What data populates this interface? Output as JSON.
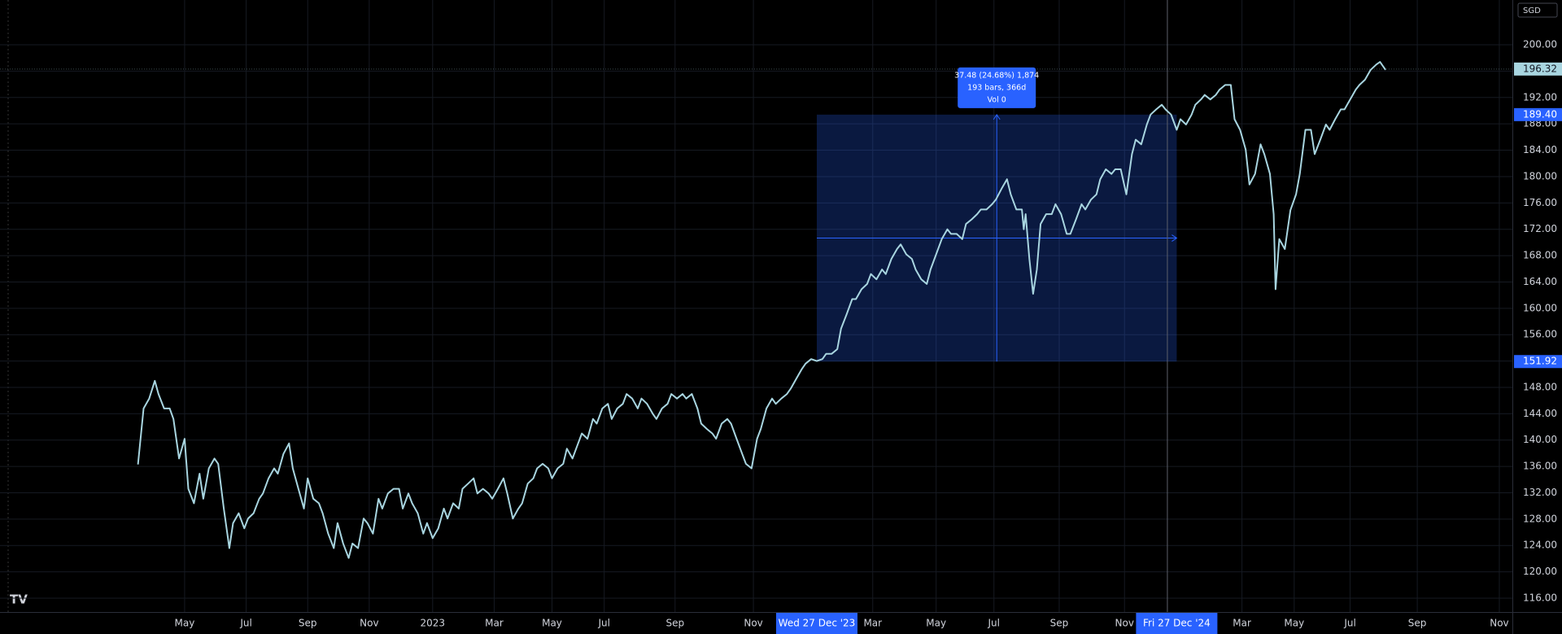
{
  "chart_data": {
    "type": "line",
    "currency": "SGD",
    "x": [
      0,
      3,
      6,
      9,
      11,
      14,
      17,
      19,
      22,
      25,
      27,
      30,
      33,
      35,
      38,
      41,
      43,
      46,
      49,
      51,
      54,
      57,
      59,
      62,
      65,
      67,
      70,
      73,
      75,
      78,
      81,
      83,
      86,
      89,
      91,
      94,
      97,
      99,
      102,
      105,
      107,
      110,
      113,
      115,
      118,
      121,
      123,
      126,
      129,
      131,
      134,
      137,
      140,
      142,
      145,
      147,
      150,
      153,
      155,
      158,
      161,
      164,
      166,
      169,
      172,
      174,
      177,
      180,
      182,
      185,
      188,
      190,
      193,
      196,
      198,
      201,
      204,
      206,
      209,
      212,
      214,
      217,
      220,
      222,
      225,
      228,
      230,
      233,
      236,
      238,
      241,
      244,
      246,
      249,
      252,
      254,
      257,
      260,
      262,
      265,
      268,
      270,
      273,
      276,
      278,
      281,
      284,
      286,
      289,
      292,
      294,
      297,
      300,
      302,
      305,
      308,
      310,
      313,
      316,
      318,
      321,
      324,
      326,
      329,
      332,
      334,
      337,
      340,
      342,
      345,
      348,
      350,
      353,
      356,
      358,
      361,
      364,
      367,
      369,
      372,
      375,
      377,
      380,
      383,
      385,
      388,
      391,
      393,
      396,
      399,
      401,
      404,
      407,
      409,
      412,
      415,
      417,
      420,
      423,
      425,
      428,
      431,
      434,
      436,
      439,
      442,
      444,
      447,
      450,
      452,
      455,
      458,
      460,
      463,
      466,
      468,
      471,
      474,
      475,
      476,
      478,
      480,
      482,
      484,
      487,
      490,
      492,
      495,
      498,
      500,
      503,
      506,
      508,
      511,
      514,
      516,
      519,
      522,
      524,
      527,
      530,
      533,
      535,
      538,
      541,
      543,
      546,
      549,
      551,
      554,
      557,
      559,
      562,
      565,
      567,
      570,
      572,
      575,
      578,
      580,
      583,
      586,
      588,
      591,
      594,
      596,
      599,
      602,
      604,
      607,
      609,
      610,
      612,
      615,
      618,
      621,
      623,
      626,
      629,
      631,
      634,
      637,
      639,
      642,
      645,
      647,
      650,
      653,
      655,
      658,
      661,
      664,
      666,
      669
    ],
    "series": [
      {
        "color": "#a8d5e0",
        "values": [
          136.3,
          144.8,
          146.3,
          149.0,
          147.0,
          144.8,
          144.8,
          143.2,
          137.2,
          140.2,
          132.6,
          130.4,
          134.9,
          131.1,
          135.7,
          137.2,
          136.4,
          129.6,
          123.6,
          127.4,
          128.9,
          126.6,
          128.1,
          128.9,
          131.1,
          131.9,
          134.2,
          135.7,
          134.9,
          137.9,
          139.5,
          135.7,
          132.6,
          129.6,
          134.2,
          131.1,
          130.4,
          128.9,
          125.8,
          123.6,
          127.4,
          124.3,
          122.1,
          124.3,
          123.6,
          128.1,
          127.4,
          125.8,
          131.1,
          129.6,
          131.9,
          132.6,
          132.6,
          129.6,
          131.9,
          130.4,
          128.9,
          125.8,
          127.4,
          125.1,
          126.6,
          129.6,
          128.1,
          130.4,
          129.6,
          132.6,
          133.4,
          134.2,
          131.9,
          132.6,
          131.9,
          131.1,
          132.6,
          134.2,
          131.9,
          128.1,
          129.6,
          130.4,
          133.4,
          134.2,
          135.7,
          136.4,
          135.7,
          134.2,
          135.7,
          136.4,
          138.7,
          137.2,
          139.5,
          141.0,
          140.2,
          143.2,
          142.5,
          144.8,
          145.5,
          143.2,
          144.8,
          145.5,
          147.0,
          146.3,
          144.8,
          146.3,
          145.5,
          144.0,
          143.2,
          144.8,
          145.5,
          147.0,
          146.3,
          147.0,
          146.3,
          147.0,
          144.8,
          142.5,
          141.7,
          141.0,
          140.2,
          142.5,
          143.2,
          142.5,
          140.2,
          137.9,
          136.4,
          135.7,
          140.2,
          141.7,
          144.8,
          146.3,
          145.5,
          146.3,
          147.0,
          147.8,
          149.3,
          150.8,
          151.6,
          152.3,
          152.0,
          152.3,
          153.1,
          153.1,
          153.8,
          156.9,
          159.1,
          161.4,
          161.4,
          162.9,
          163.7,
          165.2,
          164.4,
          165.9,
          165.2,
          167.5,
          169.0,
          169.7,
          168.2,
          167.5,
          165.9,
          164.4,
          163.7,
          165.9,
          168.2,
          170.5,
          172.0,
          171.3,
          171.3,
          170.5,
          172.8,
          173.5,
          174.3,
          175.0,
          175.0,
          175.8,
          176.5,
          178.1,
          179.6,
          177.3,
          175.0,
          175.0,
          172.0,
          174.3,
          167.5,
          162.2,
          165.9,
          172.8,
          174.3,
          174.3,
          175.8,
          174.3,
          171.3,
          171.3,
          173.5,
          175.8,
          175.0,
          176.5,
          177.3,
          179.6,
          181.1,
          180.4,
          181.1,
          181.1,
          177.3,
          183.4,
          185.6,
          184.9,
          187.9,
          189.4,
          190.2,
          190.9,
          190.2,
          189.4,
          187.1,
          188.7,
          187.9,
          189.4,
          190.9,
          191.7,
          192.4,
          191.7,
          192.4,
          193.2,
          193.9,
          193.9,
          188.7,
          187.1,
          184.1,
          178.8,
          180.4,
          184.9,
          183.4,
          180.4,
          174.3,
          162.9,
          170.5,
          169.0,
          174.9,
          177.3,
          180.4,
          187.1,
          187.1,
          183.4,
          185.6,
          187.9,
          187.1,
          188.7,
          190.2,
          190.2,
          191.7,
          193.2,
          193.9,
          194.7,
          196.2,
          197.0,
          197.4,
          196.2
        ]
      }
    ],
    "last_price": 196.32,
    "xlim": [
      -74,
      737
    ],
    "xticks": [
      {
        "value": 25,
        "label": "May"
      },
      {
        "value": 58,
        "label": "Jul"
      },
      {
        "value": 91,
        "label": "Sep"
      },
      {
        "value": 124,
        "label": "Nov"
      },
      {
        "value": 158,
        "label": "2023"
      },
      {
        "value": 191,
        "label": "Mar"
      },
      {
        "value": 222,
        "label": "May"
      },
      {
        "value": 250,
        "label": "Jul"
      },
      {
        "value": 288,
        "label": "Sep"
      },
      {
        "value": 330,
        "label": "Nov"
      },
      {
        "value": 394,
        "label": "Mar"
      },
      {
        "value": 428,
        "label": "May"
      },
      {
        "value": 459,
        "label": "Jul"
      },
      {
        "value": 494,
        "label": "Sep"
      },
      {
        "value": 529,
        "label": "Nov"
      },
      {
        "value": 592,
        "label": "Mar"
      },
      {
        "value": 620,
        "label": "May"
      },
      {
        "value": 650,
        "label": "Jul"
      },
      {
        "value": 686,
        "label": "Sep"
      },
      {
        "value": 730,
        "label": "Nov"
      }
    ],
    "ylim": [
      113.9,
      206.8
    ],
    "yticks": [
      {
        "value": 116,
        "label": "116.00"
      },
      {
        "value": 120,
        "label": "120.00"
      },
      {
        "value": 124,
        "label": "124.00"
      },
      {
        "value": 128,
        "label": "128.00"
      },
      {
        "value": 132,
        "label": "132.00"
      },
      {
        "value": 136,
        "label": "136.00"
      },
      {
        "value": 140,
        "label": "140.00"
      },
      {
        "value": 144,
        "label": "144.00"
      },
      {
        "value": 148,
        "label": "148.00"
      },
      {
        "value": 152,
        "label": "152.00"
      },
      {
        "value": 156,
        "label": "156.00"
      },
      {
        "value": 160,
        "label": "160.00"
      },
      {
        "value": 164,
        "label": "164.00"
      },
      {
        "value": 168,
        "label": "168.00"
      },
      {
        "value": 172,
        "label": "172.00"
      },
      {
        "value": 176,
        "label": "176.00"
      },
      {
        "value": 180,
        "label": "180.00"
      },
      {
        "value": 184,
        "label": "184.00"
      },
      {
        "value": 188,
        "label": "188.00"
      },
      {
        "value": 192,
        "label": "192.00"
      },
      {
        "value": 196,
        "label": "196.00"
      },
      {
        "value": 200,
        "label": "200.00"
      }
    ],
    "grid": true,
    "crosshair_x": 552,
    "measure": {
      "from_x": {
        "value": 364,
        "label": "Wed 27 Dec '23"
      },
      "to_x": {
        "value": 557,
        "label": "Fri 27 Dec '24"
      },
      "from_price": 151.92,
      "to_price": {
        "value": 189.4,
        "label": "189.40"
      },
      "lines": [
        "37.48 (24.68%) 1,874",
        "193 bars, 366d",
        "Vol 0"
      ]
    }
  }
}
